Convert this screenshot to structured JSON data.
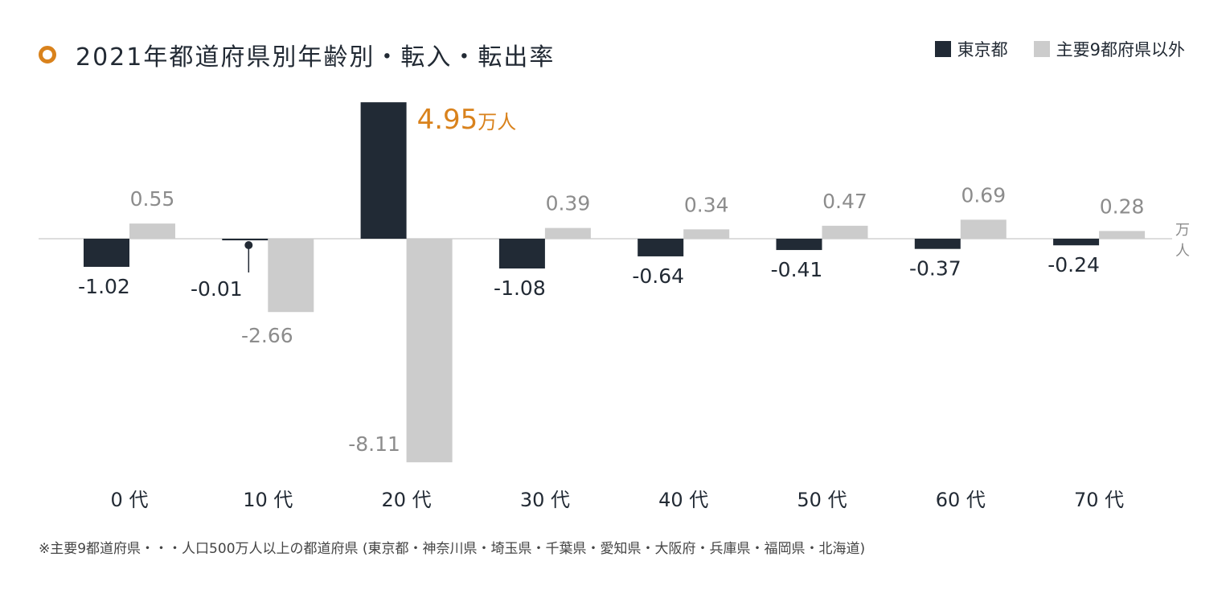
{
  "title": "2021年都道府県別年齢別・転入・転出率",
  "legend": {
    "tokyo": "東京都",
    "others": "主要9都府県以外"
  },
  "colors": {
    "tokyo": "#212a35",
    "others": "#cccccc",
    "accent": "#d9821c",
    "baseline": "#dddddd",
    "label_dark": "#222a34",
    "label_gray": "#8c8c8c"
  },
  "unit_label": "万人",
  "highlight": {
    "value": "4.95",
    "unit": "万人"
  },
  "footnote": "※主要9都道府県・・・人口500万人以上の都道府県 (東京都・神奈川県・埼玉県・千葉県・愛知県・大阪府・兵庫県・福岡県・北海道)",
  "chart_data": {
    "type": "bar",
    "categories": [
      "0 代",
      "10 代",
      "20 代",
      "30 代",
      "40 代",
      "50 代",
      "60 代",
      "70 代"
    ],
    "series": [
      {
        "name": "東京都",
        "values": [
          -1.02,
          -0.01,
          4.95,
          -1.08,
          -0.64,
          -0.41,
          -0.37,
          -0.24
        ],
        "labels": [
          "-1.02",
          "-0.01",
          "",
          "-1.08",
          "-0.64",
          "-0.41",
          "-0.37",
          "-0.24"
        ]
      },
      {
        "name": "主要9都府県以外",
        "values": [
          0.55,
          -2.66,
          -8.11,
          0.39,
          0.34,
          0.47,
          0.69,
          0.28
        ],
        "labels": [
          "0.55",
          "-2.66",
          "-8.11",
          "0.39",
          "0.34",
          "0.47",
          "0.69",
          "0.28"
        ]
      }
    ],
    "ylabel": "万人",
    "grid": false,
    "legend_position": "top-right"
  }
}
